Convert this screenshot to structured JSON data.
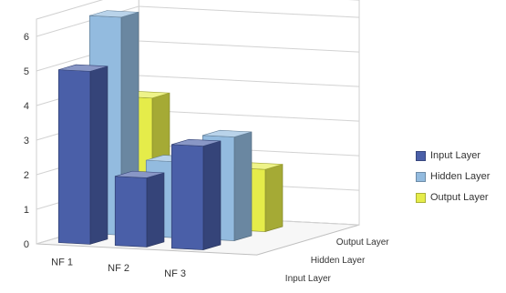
{
  "chart_data": {
    "type": "bar",
    "categories": [
      "NF 1",
      "NF 2",
      "NF 3"
    ],
    "series": [
      {
        "name": "Input Layer",
        "values": [
          5,
          2,
          3
        ],
        "color": "#4a5fa8"
      },
      {
        "name": "Hidden Layer",
        "values": [
          6.3,
          2.2,
          3.0
        ],
        "color": "#93bbdf"
      },
      {
        "name": "Output Layer",
        "values": [
          3.7,
          0.8,
          1.8
        ],
        "color": "#e5ec4a"
      }
    ],
    "y_ticks": [
      "0",
      "1",
      "2",
      "3",
      "4",
      "5",
      "6"
    ],
    "ylim": [
      0,
      6.5
    ],
    "depth_labels": [
      "Input Layer",
      "Hidden Layer",
      "Output Layer"
    ],
    "legend_position": "right",
    "grid": true
  }
}
